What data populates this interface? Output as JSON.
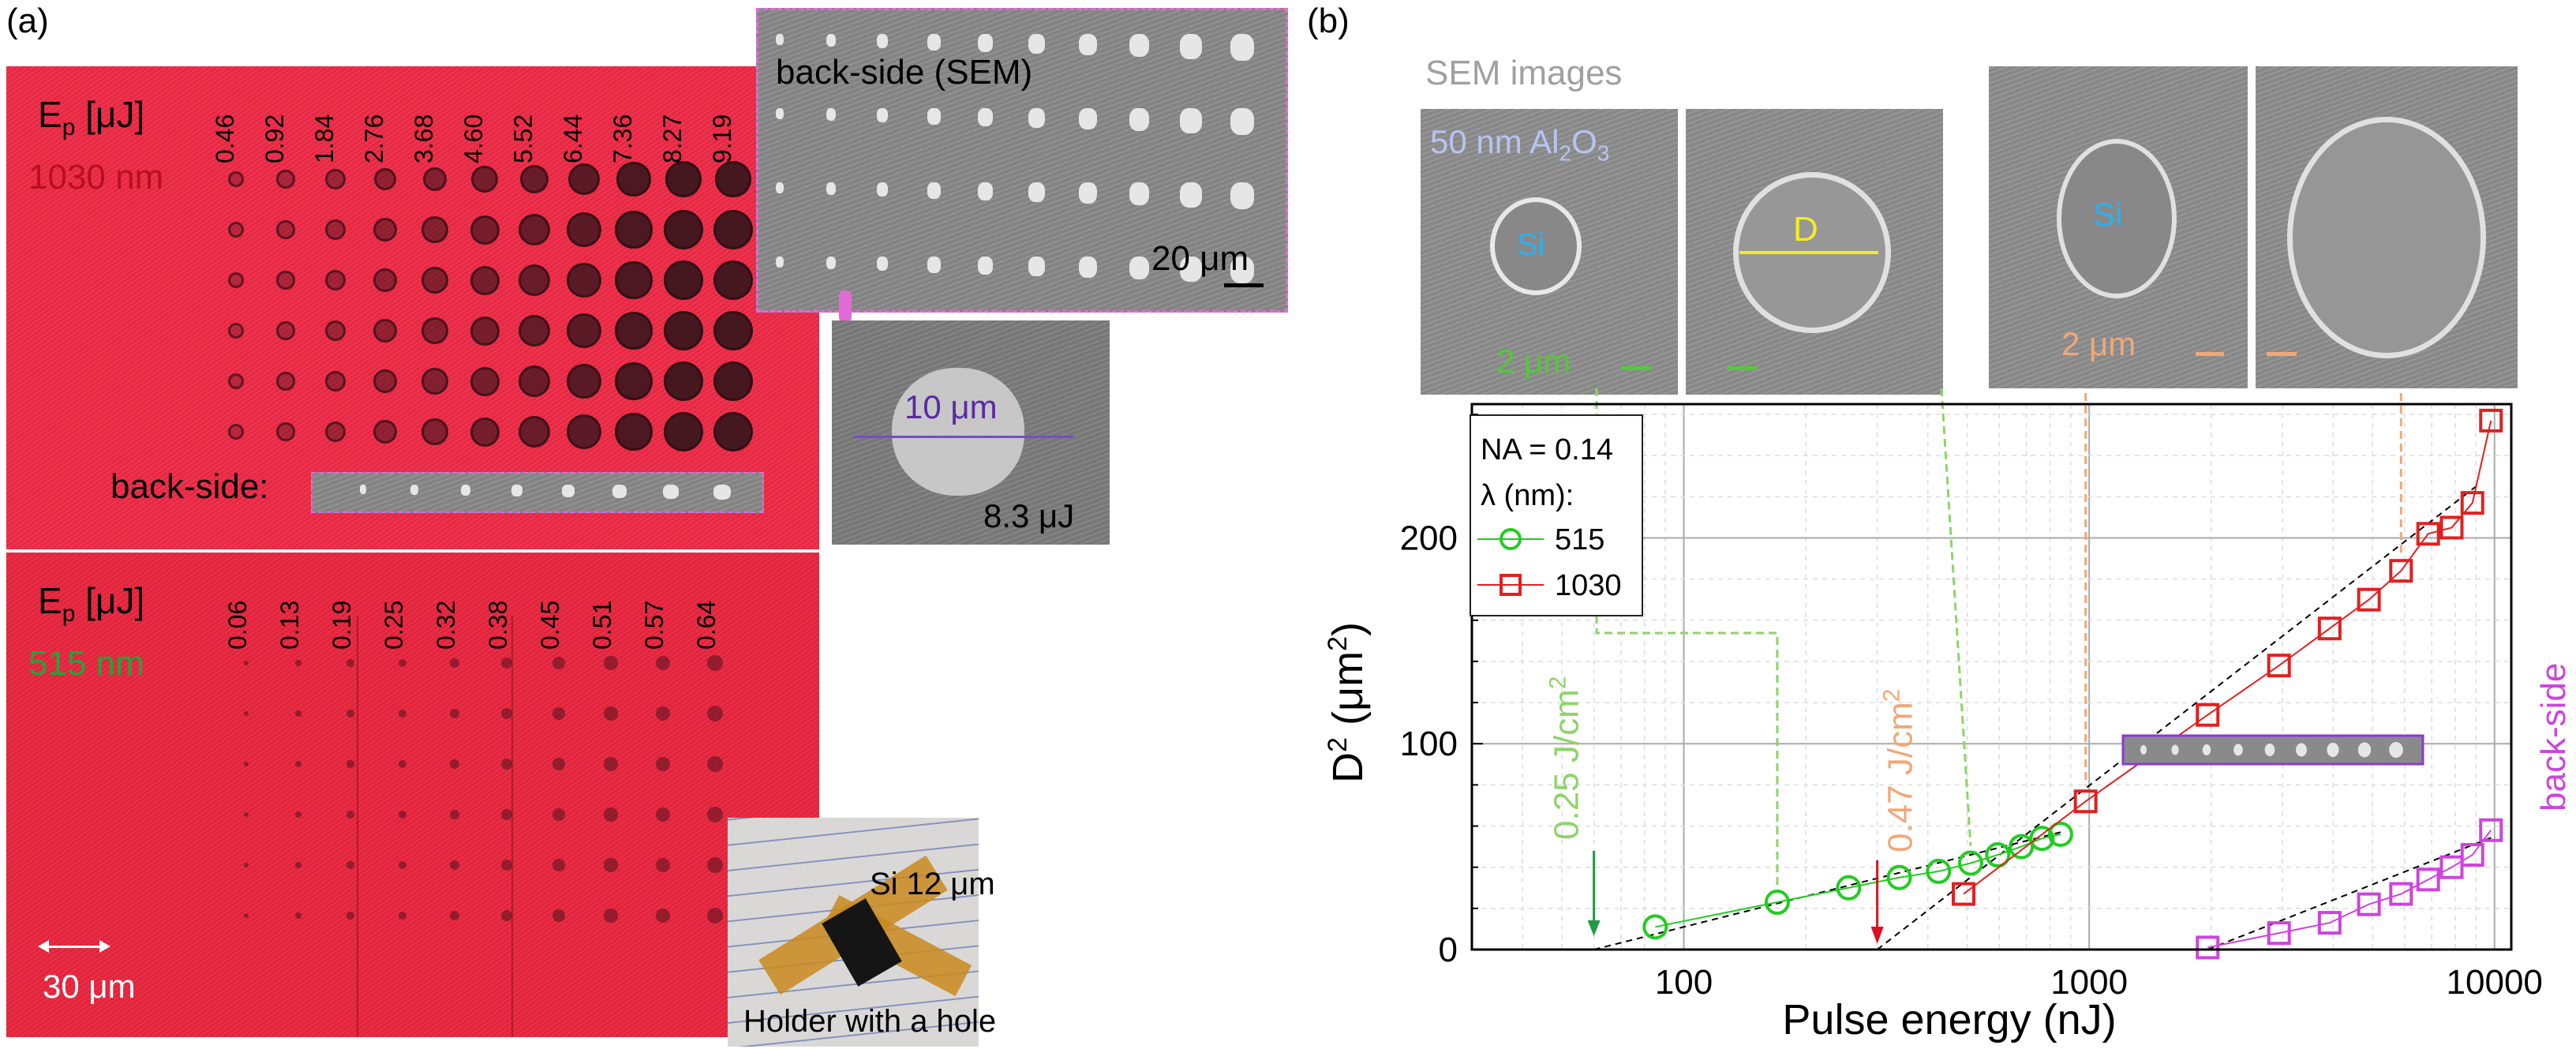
{
  "panel_a": {
    "label": "(a)",
    "upper": {
      "ep_label": "E",
      "ep_sub": "p",
      "ep_unit": " [μJ]",
      "wavelength": "1030 nm",
      "energies": [
        "0.46",
        "0.92",
        "1.84",
        "2.76",
        "3.68",
        "4.60",
        "5.52",
        "6.44",
        "7.36",
        "8.27",
        "9.19"
      ],
      "backside_label": "back-side:"
    },
    "lower": {
      "ep_label": "E",
      "ep_sub": "p",
      "ep_unit": " [μJ]",
      "wavelength": "515 nm",
      "energies": [
        "0.06",
        "0.13",
        "0.19",
        "0.25",
        "0.32",
        "0.38",
        "0.45",
        "0.51",
        "0.57",
        "0.64"
      ],
      "scale": "30 μm"
    },
    "sem_inset": {
      "title": "back-side (SEM)",
      "scale": "20 μm"
    },
    "sem_zoom": {
      "scale": "10 μm",
      "energy": "8.3 μJ"
    },
    "photo": {
      "label_top": "Si 12 μm",
      "label_bottom": "Holder with a hole"
    }
  },
  "panel_b": {
    "label": "(b)",
    "sem_header": "SEM images",
    "sem_coating": "50 nm Al",
    "sem_coating_sub": "2",
    "sem_coating_o": "O",
    "sem_coating_sub2": "3",
    "si_label": "Si",
    "d_label": "D",
    "scale_green": "2 μm",
    "scale_orange": "2 μm",
    "colors": {
      "green": "#55c83a",
      "red": "#e02020",
      "magenta": "#cc44dd",
      "orange": "#f0a878",
      "lightgreen": "#8fd36a"
    }
  },
  "chart_data": {
    "type": "scatter",
    "xlabel": "Pulse energy (nJ)",
    "ylabel": "D",
    "ylabel_sup": "2",
    "ylabel_unit": " (μm",
    "ylabel_unit_sup": "2",
    "ylabel_close": ")",
    "xscale": "log",
    "xlim": [
      30,
      11000
    ],
    "ylim": [
      0,
      265
    ],
    "xticks": [
      100,
      1000,
      10000
    ],
    "xtick_labels": [
      "100",
      "1000",
      "10000"
    ],
    "yticks": [
      0,
      100,
      200
    ],
    "ytick_labels": [
      "0",
      "100",
      "200"
    ],
    "grid": true,
    "legend": {
      "na": "NA = 0.14",
      "lambda": "λ (nm):",
      "placement": "top-left"
    },
    "series": [
      {
        "name": "515",
        "marker": "circle",
        "color": "#22cc22",
        "x": [
          85,
          170,
          255,
          340,
          425,
          510,
          595,
          680,
          765,
          850
        ],
        "y": [
          11,
          23,
          30,
          35,
          38,
          42,
          46,
          50,
          54,
          56
        ]
      },
      {
        "name": "1030",
        "marker": "square",
        "color": "#e02020",
        "x": [
          490,
          980,
          1960,
          2940,
          3920,
          4900,
          5880,
          6860,
          7840,
          8820,
          9800
        ],
        "y": [
          27,
          72,
          114,
          138,
          156,
          170,
          184,
          202,
          205,
          217,
          257
        ]
      },
      {
        "name": "back-side",
        "marker": "square",
        "color": "#cc44dd",
        "x": [
          1960,
          2940,
          3920,
          4900,
          5880,
          6860,
          7840,
          8820,
          9800
        ],
        "y": [
          1,
          8,
          13,
          22,
          27,
          34,
          40,
          46,
          58
        ]
      }
    ],
    "annotations": [
      {
        "text": "0.25 J/cm",
        "sup": "2",
        "x": 60,
        "color": "#8fd36a"
      },
      {
        "text": "0.47 J/cm",
        "sup": "2",
        "x": 300,
        "color": "#f0a878"
      },
      {
        "text": "back-side",
        "color": "#cc44dd"
      }
    ]
  }
}
